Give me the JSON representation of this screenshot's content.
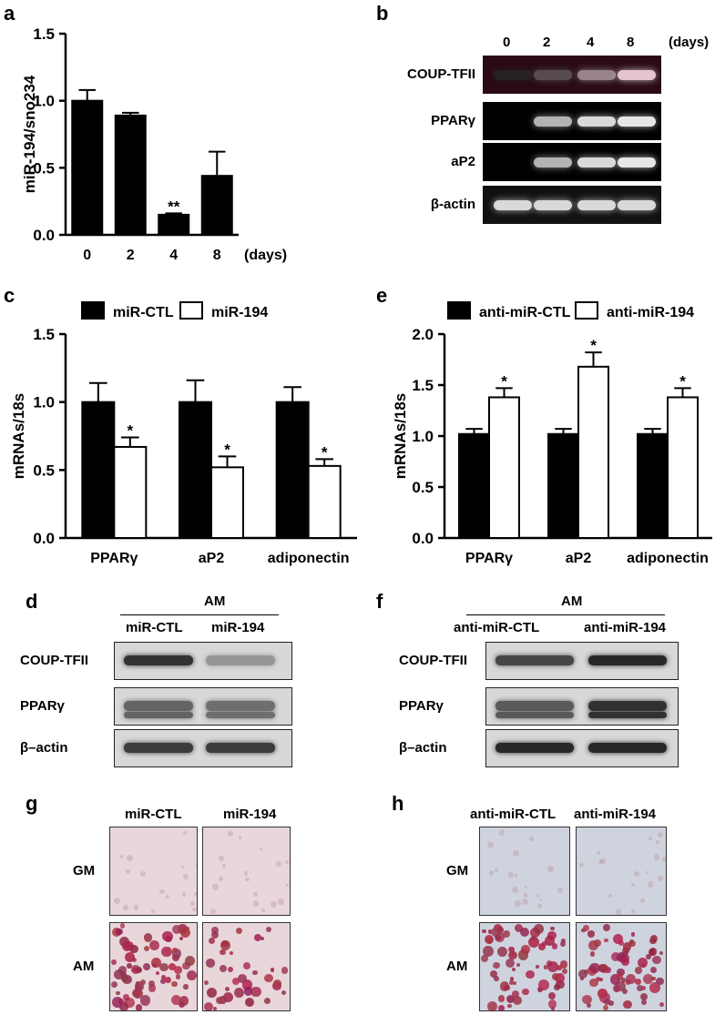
{
  "panels": {
    "a": "a",
    "b": "b",
    "c": "c",
    "d": "d",
    "e": "e",
    "f": "f",
    "g": "g",
    "h": "h"
  },
  "chart_data": [
    {
      "id": "a",
      "type": "bar",
      "ylabel": "miR-194/sno234",
      "xunit": "(days)",
      "categories": [
        "0",
        "2",
        "4",
        "8"
      ],
      "values": [
        1.0,
        0.89,
        0.15,
        0.44
      ],
      "errors": [
        0.08,
        0.02,
        0.01,
        0.18
      ],
      "annotations": [
        "",
        "",
        "**",
        ""
      ],
      "ylim": [
        0,
        1.5
      ],
      "yticks": [
        "0.0",
        "0.5",
        "1.0",
        "1.5"
      ]
    },
    {
      "id": "c",
      "type": "bar",
      "ylabel": "mRNAs/18s",
      "categories": [
        "PPARγ",
        "aP2",
        "adiponectin"
      ],
      "series": [
        {
          "name": "miR-CTL",
          "values": [
            1.0,
            1.0,
            1.0
          ],
          "errors": [
            0.14,
            0.16,
            0.11
          ],
          "color": "#000000"
        },
        {
          "name": "miR-194",
          "values": [
            0.67,
            0.52,
            0.53
          ],
          "errors": [
            0.07,
            0.08,
            0.05
          ],
          "color": "#ffffff",
          "annotations": [
            "*",
            "*",
            "*"
          ]
        }
      ],
      "ylim": [
        0,
        1.5
      ],
      "yticks": [
        "0.0",
        "0.5",
        "1.0",
        "1.5"
      ],
      "legend": "top"
    },
    {
      "id": "e",
      "type": "bar",
      "ylabel": "mRNAs/18s",
      "categories": [
        "PPARγ",
        "aP2",
        "adiponectin"
      ],
      "series": [
        {
          "name": "anti-miR-CTL",
          "values": [
            1.02,
            1.02,
            1.02
          ],
          "errors": [
            0.05,
            0.05,
            0.05
          ],
          "color": "#000000"
        },
        {
          "name": "anti-miR-194",
          "values": [
            1.38,
            1.68,
            1.38
          ],
          "errors": [
            0.09,
            0.14,
            0.09
          ],
          "color": "#ffffff",
          "annotations": [
            "*",
            "*",
            "*"
          ]
        }
      ],
      "ylim": [
        0,
        2.0
      ],
      "yticks": [
        "0.0",
        "0.5",
        "1.0",
        "1.5",
        "2.0"
      ],
      "legend": "top"
    }
  ],
  "gel_b": {
    "days": [
      "0",
      "2",
      "4",
      "8"
    ],
    "unit": "(days)",
    "rows": [
      {
        "label": "COUP-TFII",
        "intensity": [
          0.15,
          0.35,
          0.6,
          0.9
        ],
        "bg": "#2a0a14"
      },
      {
        "label": "PPARγ",
        "intensity": [
          0.0,
          0.7,
          0.85,
          0.9
        ],
        "bg": "#000000"
      },
      {
        "label": "aP2",
        "intensity": [
          0.0,
          0.7,
          0.85,
          0.9
        ],
        "bg": "#000000"
      },
      {
        "label": "β-actin",
        "intensity": [
          0.85,
          0.85,
          0.85,
          0.85
        ],
        "bg": "#111111"
      }
    ]
  },
  "blot_d": {
    "group": "AM",
    "lanes": [
      "miR-CTL",
      "miR-194"
    ],
    "rows": [
      {
        "label": "COUP-TFII",
        "intensity": [
          0.85,
          0.35
        ]
      },
      {
        "label": "PPARγ",
        "intensity": [
          0.6,
          0.55
        ]
      },
      {
        "label": "β–actin",
        "intensity": [
          0.8,
          0.8
        ]
      }
    ]
  },
  "blot_f": {
    "group": "AM",
    "lanes": [
      "anti-miR-CTL",
      "anti-miR-194"
    ],
    "rows": [
      {
        "label": "COUP-TFII",
        "intensity": [
          0.75,
          0.9
        ]
      },
      {
        "label": "PPARγ",
        "intensity": [
          0.65,
          0.85
        ]
      },
      {
        "label": "β–actin",
        "intensity": [
          0.9,
          0.9
        ]
      }
    ]
  },
  "stain_g": {
    "cols": [
      "miR-CTL",
      "miR-194"
    ],
    "rows": [
      "GM",
      "AM"
    ]
  },
  "stain_h": {
    "cols": [
      "anti-miR-CTL",
      "anti-miR-194"
    ],
    "rows": [
      "GM",
      "AM"
    ]
  }
}
